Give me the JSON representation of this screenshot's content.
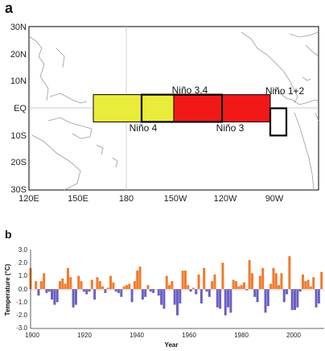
{
  "panel_a": {
    "label": "a",
    "lat_labels": [
      "30N",
      "20N",
      "10N",
      "EQ",
      "10S",
      "20S",
      "30S"
    ],
    "lon_labels": [
      "120E",
      "150E",
      "180",
      "150W",
      "120W",
      "90W"
    ],
    "regions": [
      {
        "name": "Niño 4",
        "label": "Niño 4",
        "color": "#e9ec3a",
        "lon": [
          160,
          210
        ],
        "lat": [
          -5,
          5
        ]
      },
      {
        "name": "Niño 3",
        "label": "Niño 3",
        "color": "#f21818",
        "lon": [
          210,
          270
        ],
        "lat": [
          -5,
          5
        ]
      },
      {
        "name": "Niño 3.4",
        "label": "Niño 3.4",
        "outline": "#000000",
        "lon": [
          190,
          240
        ],
        "lat": [
          -5,
          5
        ]
      },
      {
        "name": "Niño 1+2",
        "label": "Niño 1+2",
        "outline": "#000000",
        "lon": [
          270,
          280
        ],
        "lat": [
          -10,
          0
        ]
      }
    ]
  },
  "panel_b": {
    "label": "b",
    "ylabel": "Temperature (°C)",
    "xlabel": "Year",
    "yticks": [
      "3.0",
      "2.0",
      "1.0",
      "0.0",
      "-1.0",
      "-2.0",
      "-3.0"
    ],
    "xticks": [
      "1900",
      "1920",
      "1940",
      "1960",
      "1980",
      "2000"
    ],
    "colors": {
      "positive": "#f07a2c",
      "negative": "#6a5fc4"
    }
  },
  "chart_data": {
    "type": "area",
    "title": "",
    "xlabel": "Year",
    "ylabel": "Temperature (°C)",
    "xlim": [
      1900,
      2010
    ],
    "ylim": [
      -3.0,
      3.0
    ],
    "grid": false,
    "series": [
      {
        "x": [
          1900,
          1902,
          1903,
          1904,
          1905,
          1906,
          1907,
          1908,
          1909,
          1910,
          1911,
          1912,
          1913,
          1914,
          1915,
          1916,
          1917,
          1918,
          1919,
          1920,
          1921,
          1922,
          1923,
          1924,
          1925,
          1926,
          1927,
          1928,
          1929,
          1930,
          1931,
          1932,
          1933,
          1934,
          1935,
          1936,
          1937,
          1938,
          1939,
          1940,
          1941,
          1942,
          1943,
          1944,
          1945,
          1946,
          1947,
          1948,
          1949,
          1950,
          1951,
          1952,
          1953,
          1954,
          1955,
          1956,
          1957,
          1958,
          1959,
          1960,
          1961,
          1962,
          1963,
          1964,
          1965,
          1966,
          1967,
          1968,
          1969,
          1970,
          1971,
          1972,
          1973,
          1974,
          1975,
          1976,
          1977,
          1978,
          1979,
          1980,
          1981,
          1982,
          1983,
          1984,
          1985,
          1986,
          1987,
          1988,
          1989,
          1990,
          1991,
          1992,
          1993,
          1994,
          1995,
          1996,
          1997,
          1998,
          1999,
          2000,
          2001,
          2002,
          2003,
          2004,
          2005,
          2006,
          2007,
          2008,
          2009
        ],
        "values": [
          1.6,
          0.6,
          -0.5,
          0.6,
          1.2,
          -0.3,
          -0.2,
          -0.8,
          -1.2,
          -1.0,
          0.6,
          0.8,
          0.4,
          1.6,
          0.9,
          -1.4,
          -1.2,
          1.0,
          0.6,
          -0.2,
          -0.4,
          -0.2,
          0.7,
          -0.8,
          0.9,
          0.6,
          0.2,
          -0.3,
          0.1,
          1.0,
          0.5,
          -0.2,
          -0.3,
          -0.6,
          0.2,
          0.3,
          0.4,
          -1.0,
          0.6,
          1.4,
          1.7,
          -0.8,
          -0.6,
          0.3,
          -0.2,
          -0.3,
          0.0,
          -0.5,
          -1.2,
          -1.5,
          1.0,
          0.3,
          0.6,
          -1.2,
          -2.0,
          -1.1,
          1.4,
          1.4,
          0.3,
          -0.2,
          0.1,
          -0.4,
          1.1,
          -1.1,
          1.6,
          -0.2,
          -0.6,
          0.6,
          1.1,
          -1.4,
          -1.5,
          2.0,
          -2.0,
          -1.4,
          -1.8,
          0.7,
          0.6,
          0.2,
          0.3,
          0.5,
          -0.1,
          2.2,
          1.2,
          -0.6,
          -1.0,
          1.0,
          1.6,
          -1.8,
          -1.3,
          0.4,
          1.6,
          1.2,
          0.3,
          1.2,
          -1.0,
          -0.4,
          2.5,
          -1.6,
          -1.6,
          -1.4,
          -0.2,
          1.1,
          0.6,
          0.7,
          0.2,
          0.9,
          -1.4,
          -1.1,
          1.3
        ]
      }
    ]
  }
}
